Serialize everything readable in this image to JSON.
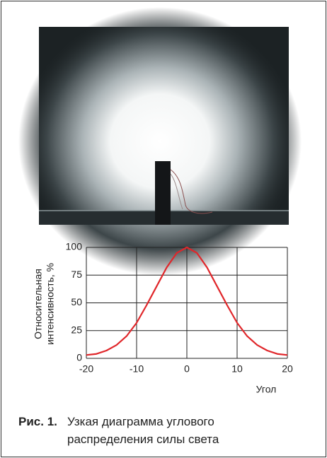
{
  "chart_data": {
    "type": "line",
    "ylabel": [
      "Относительная",
      "интенсивность, %"
    ],
    "xlabel": "Угол",
    "x": [
      -20,
      -18,
      -16,
      -14,
      -12,
      -10,
      -8,
      -6,
      -4,
      -2,
      0,
      2,
      4,
      6,
      8,
      10,
      12,
      14,
      16,
      18,
      20
    ],
    "values": [
      3,
      4,
      7,
      12,
      20,
      32,
      48,
      65,
      82,
      95,
      100,
      95,
      82,
      65,
      48,
      32,
      20,
      12,
      7,
      4,
      3
    ],
    "color": "#e0262a",
    "xlim": [
      -20,
      20
    ],
    "ylim": [
      0,
      100
    ],
    "xticks": [
      -20,
      -10,
      0,
      10,
      20
    ],
    "yticks": [
      0,
      25,
      50,
      75,
      100
    ],
    "grid": true
  },
  "caption": {
    "label": "Рис. 1.",
    "text": "Узкая диаграмма углового распределения силы света"
  }
}
